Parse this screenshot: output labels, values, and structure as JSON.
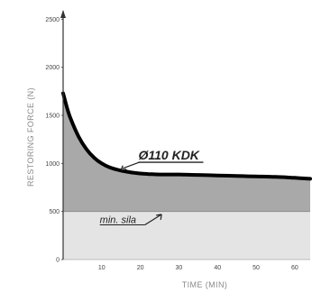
{
  "chart_data": {
    "type": "area",
    "xlabel": "TIME (MIN)",
    "ylabel": "RESTORING FORCE (N)",
    "xlim": [
      0,
      64
    ],
    "ylim": [
      0,
      2550
    ],
    "x_ticks": [
      10,
      20,
      30,
      40,
      50,
      60
    ],
    "y_ticks": [
      0,
      500,
      1000,
      1500,
      2000,
      2500
    ],
    "grid": false,
    "series": [
      {
        "name": "Ø110 KDK",
        "x": [
          0,
          1,
          2,
          4,
          6,
          8,
          10,
          12,
          15,
          18,
          20,
          22,
          25,
          30,
          35,
          40,
          45,
          50,
          55,
          60,
          64
        ],
        "y": [
          1730,
          1580,
          1460,
          1280,
          1150,
          1060,
          1000,
          960,
          925,
          905,
          895,
          890,
          885,
          885,
          880,
          875,
          870,
          865,
          860,
          850,
          840
        ]
      }
    ],
    "threshold": {
      "label": "min. sila",
      "value": 500
    },
    "colors": {
      "area_above_threshold": "#a9a9a9",
      "area_below_threshold": "#e4e4e4",
      "curve": "#000000",
      "axis": "#333333"
    }
  }
}
